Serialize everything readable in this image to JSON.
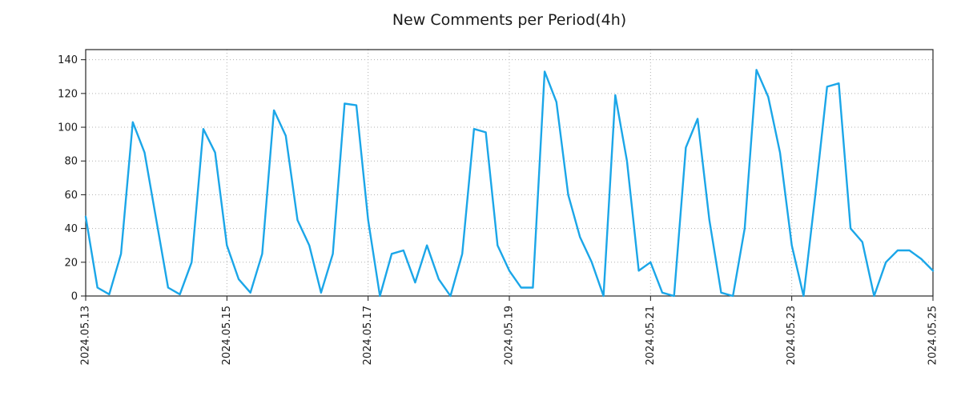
{
  "chart_data": {
    "type": "line",
    "title": "New Comments per Period(4h)",
    "period_hours": 4,
    "line_color": "#1ba6e8",
    "grid": true,
    "grid_style": "dotted",
    "ylim": [
      0,
      146
    ],
    "y_ticks": [
      0,
      20,
      40,
      60,
      80,
      100,
      120,
      140
    ],
    "x_tick_labels": [
      "2024.05.13",
      "2024.05.15",
      "2024.05.17",
      "2024.05.19",
      "2024.05.21",
      "2024.05.23",
      "2024.05.25"
    ],
    "x_tick_indices": [
      0,
      12,
      24,
      36,
      48,
      60,
      72
    ],
    "values": [
      47,
      5,
      1,
      25,
      103,
      85,
      45,
      5,
      1,
      20,
      99,
      85,
      30,
      10,
      2,
      25,
      110,
      95,
      45,
      30,
      2,
      25,
      114,
      113,
      45,
      0,
      25,
      27,
      8,
      30,
      10,
      0,
      25,
      99,
      97,
      30,
      15,
      5,
      5,
      133,
      115,
      60,
      35,
      20,
      0,
      119,
      80,
      15,
      20,
      2,
      0,
      88,
      105,
      45,
      2,
      0,
      40,
      134,
      118,
      85,
      30,
      0,
      60,
      124,
      126,
      40,
      32,
      0,
      20,
      27,
      27,
      22,
      15
    ]
  }
}
